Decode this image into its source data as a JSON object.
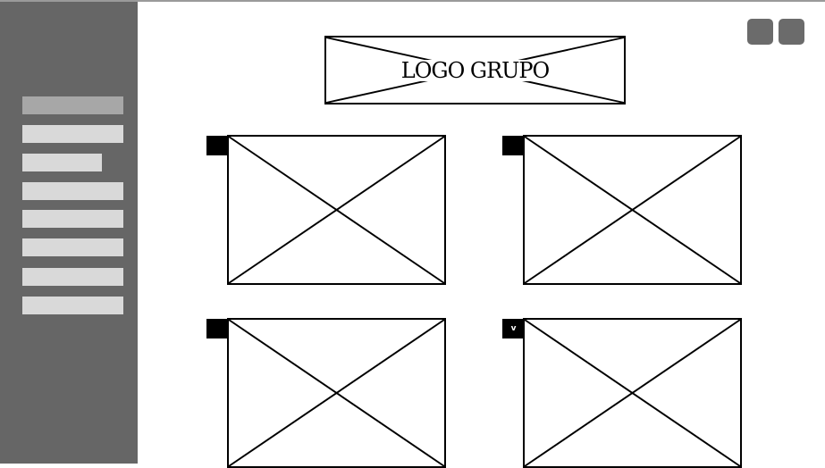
{
  "header": {
    "logo_label": "LOGO GRUPO",
    "buttons": [
      "action-button-1",
      "action-button-2"
    ]
  },
  "sidebar": {
    "items": [
      {
        "state": "active"
      },
      {
        "state": "normal"
      },
      {
        "state": "normal"
      },
      {
        "state": "normal"
      },
      {
        "state": "normal"
      },
      {
        "state": "normal"
      },
      {
        "state": "normal"
      },
      {
        "state": "normal"
      }
    ]
  },
  "cards": [
    {
      "marker": ""
    },
    {
      "marker": ""
    },
    {
      "marker": ""
    },
    {
      "marker": "v"
    }
  ],
  "colors": {
    "sidebar": "#666666",
    "menu_item": "#d9d9d9",
    "menu_item_active": "#a7a7a7",
    "button": "#6b6b6b",
    "line": "#000000"
  }
}
